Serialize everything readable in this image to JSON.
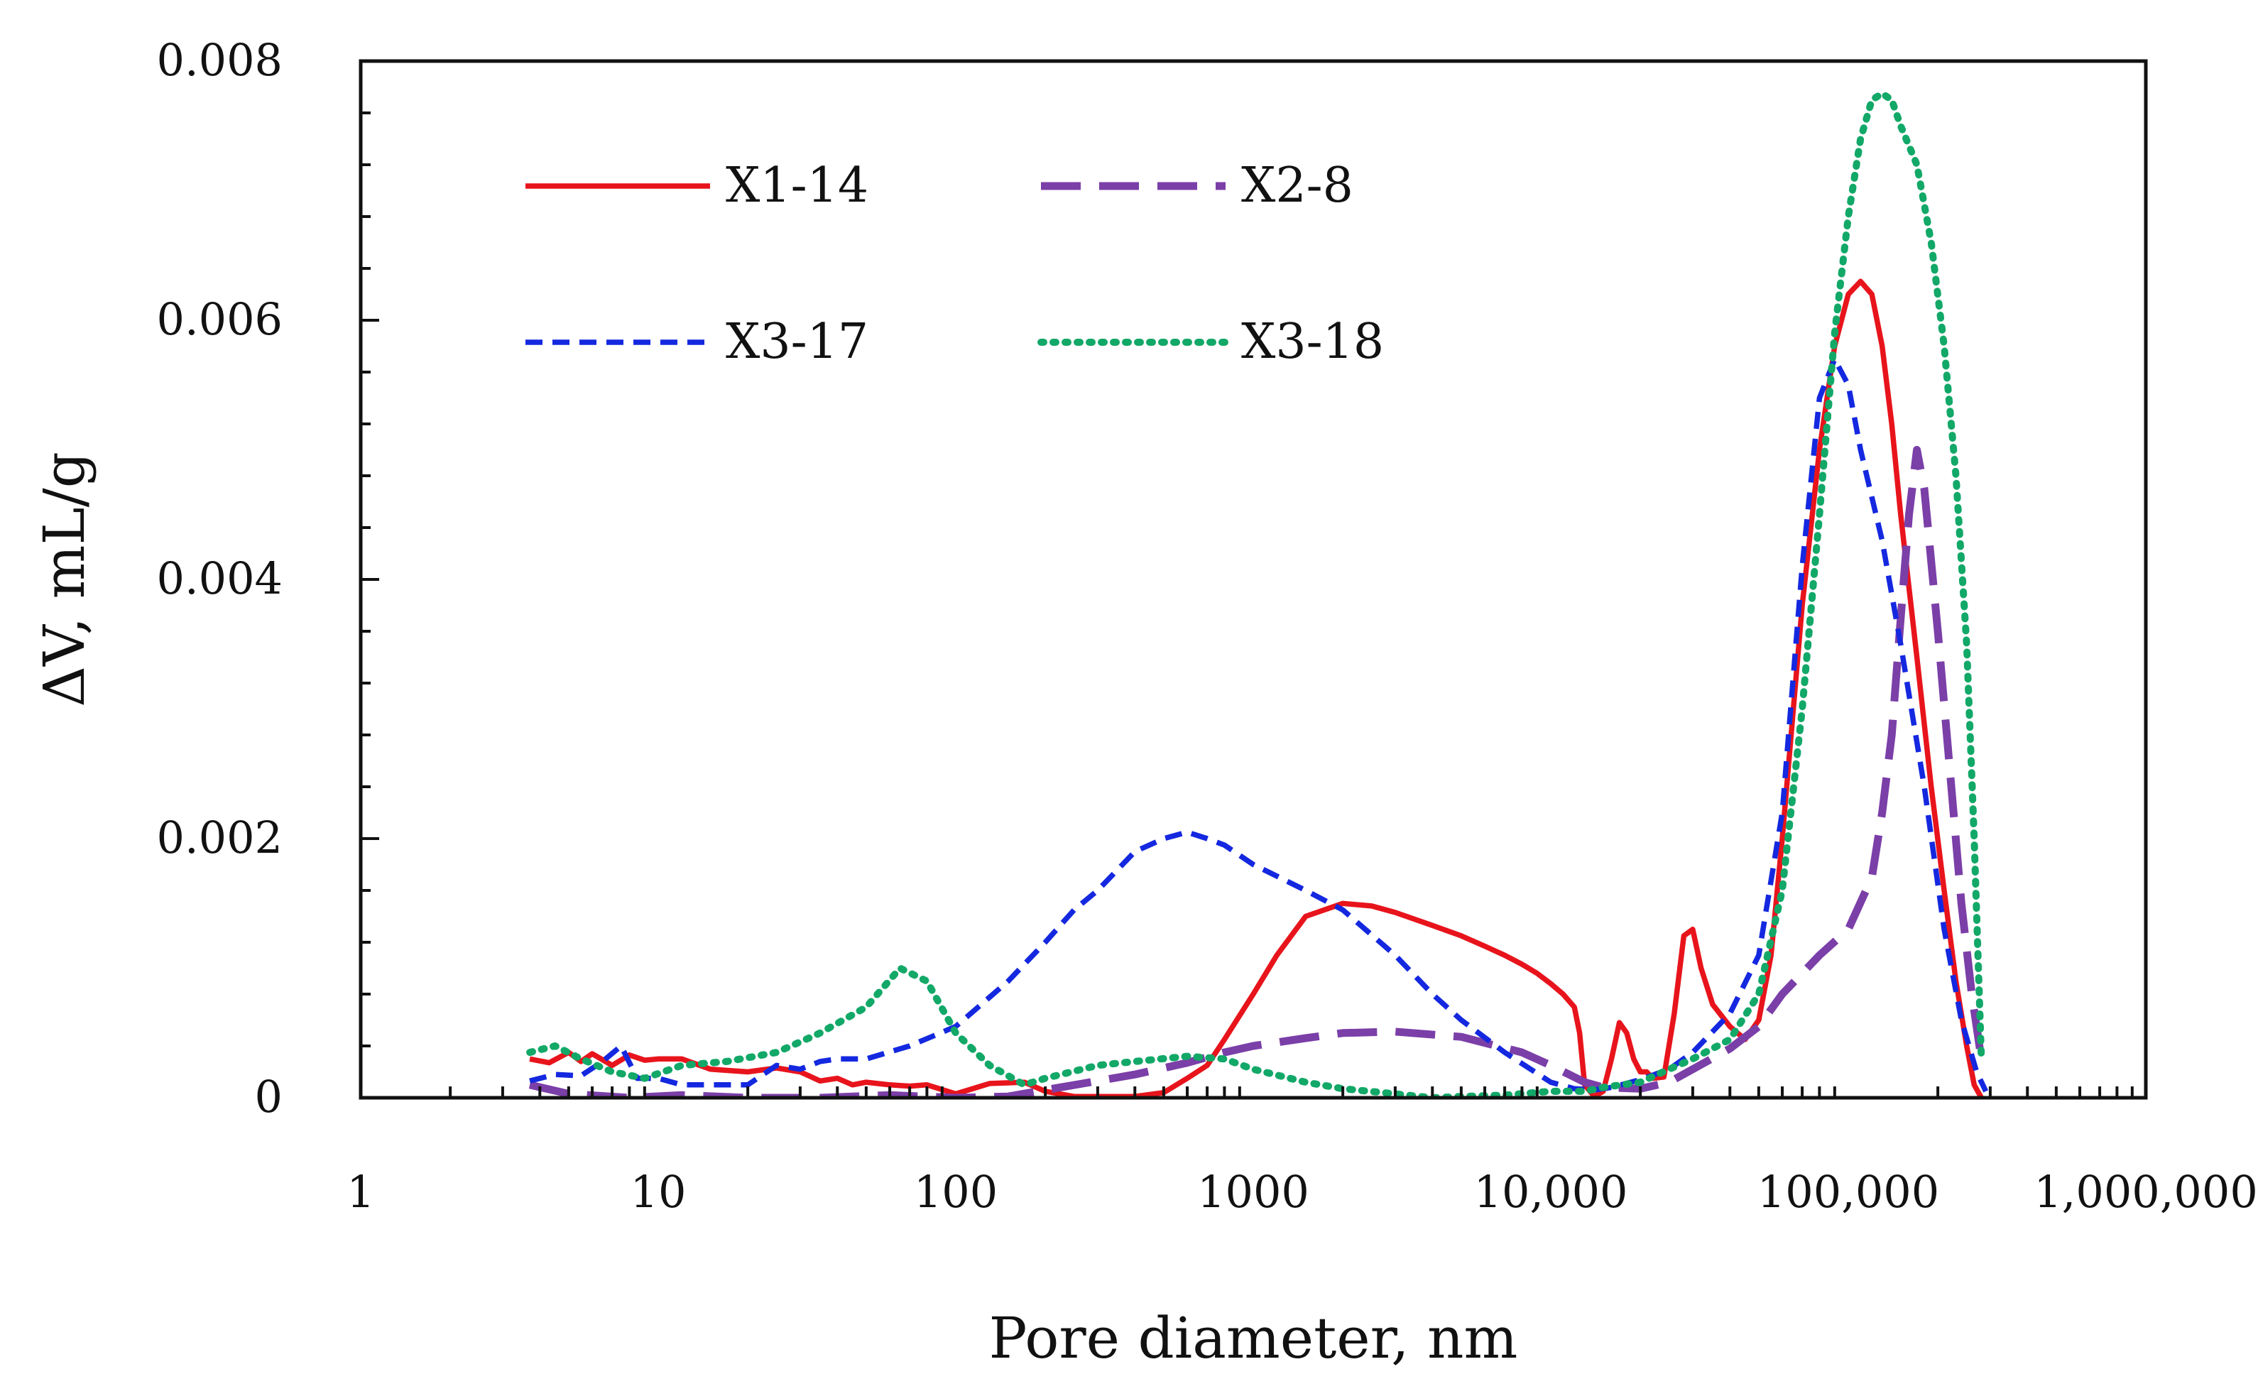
{
  "chart_data": {
    "type": "line",
    "title": "",
    "xlabel": "Pore diameter, nm",
    "ylabel": "ΔV, mL/g",
    "xscale": "log",
    "xlim": [
      1,
      1000000
    ],
    "ylim": [
      0,
      0.008
    ],
    "x_ticks": [
      {
        "value": 1,
        "label": "1"
      },
      {
        "value": 10,
        "label": "10"
      },
      {
        "value": 100,
        "label": "100"
      },
      {
        "value": 1000,
        "label": "1000"
      },
      {
        "value": 10000,
        "label": "10,000"
      },
      {
        "value": 100000,
        "label": "100,000"
      },
      {
        "value": 1000000,
        "label": "1,000,000"
      }
    ],
    "y_ticks": [
      {
        "value": 0,
        "label": "0"
      },
      {
        "value": 0.002,
        "label": "0.002"
      },
      {
        "value": 0.004,
        "label": "0.004"
      },
      {
        "value": 0.006,
        "label": "0.006"
      },
      {
        "value": 0.008,
        "label": "0.008"
      }
    ],
    "legend_position": "top-left",
    "series": [
      {
        "name": "X1-14",
        "color": "#e8141c",
        "style": "solid",
        "x": [
          3.7,
          4.3,
          5,
          5.5,
          6,
          7,
          8,
          9,
          10,
          12,
          15,
          20,
          25,
          30,
          35,
          40,
          45,
          50,
          60,
          70,
          80,
          100,
          130,
          170,
          200,
          250,
          300,
          400,
          500,
          600,
          700,
          800,
          1000,
          1200,
          1500,
          2000,
          2500,
          3000,
          4000,
          5000,
          6000,
          7000,
          8000,
          9000,
          10000,
          11000,
          12000,
          12500,
          13000,
          14000,
          15000,
          16000,
          17000,
          18000,
          19000,
          20000,
          21000,
          22000,
          24000,
          26000,
          28000,
          30000,
          32000,
          35000,
          40000,
          45000,
          50000,
          55000,
          60000,
          70000,
          80000,
          90000,
          100000,
          110000,
          120000,
          130000,
          140000,
          150000,
          170000,
          190000,
          210000,
          230000,
          250000,
          265000,
          280000
        ],
        "values": [
          0.0003,
          0.00027,
          0.00035,
          0.00028,
          0.00034,
          0.00025,
          0.00033,
          0.00029,
          0.0003,
          0.0003,
          0.00022,
          0.0002,
          0.00023,
          0.0002,
          0.00013,
          0.00015,
          0.0001,
          0.00012,
          0.0001,
          9e-05,
          0.0001,
          3e-05,
          0.00011,
          0.00012,
          5e-05,
          1e-05,
          1e-05,
          1e-05,
          4e-05,
          0.00015,
          0.00025,
          0.00045,
          0.0008,
          0.0011,
          0.0014,
          0.0015,
          0.00148,
          0.00143,
          0.00133,
          0.00125,
          0.00117,
          0.0011,
          0.00103,
          0.00096,
          0.00088,
          0.0008,
          0.0007,
          0.0005,
          0.0001,
          1e-05,
          5e-05,
          0.0003,
          0.00058,
          0.0005,
          0.0003,
          0.0002,
          0.0002,
          0.00015,
          0.00016,
          0.00065,
          0.00125,
          0.0013,
          0.001,
          0.00072,
          0.00055,
          0.00045,
          0.0006,
          0.0011,
          0.002,
          0.0038,
          0.005,
          0.0058,
          0.0062,
          0.0063,
          0.0062,
          0.0058,
          0.0052,
          0.0045,
          0.0034,
          0.0024,
          0.0016,
          0.0009,
          0.0004,
          0.0001,
          0.0
        ]
      },
      {
        "name": "X2-8",
        "color": "#7b3fa8",
        "style": "long-dash",
        "x": [
          3.7,
          5,
          8,
          12,
          20,
          35,
          60,
          100,
          150,
          200,
          300,
          400,
          600,
          800,
          1000,
          1500,
          2000,
          3000,
          5000,
          8000,
          10000,
          13000,
          15000,
          20000,
          25000,
          30000,
          40000,
          50000,
          60000,
          80000,
          100000,
          120000,
          130000,
          140000,
          150000,
          160000,
          170000,
          180000,
          200000,
          220000,
          240000,
          260000,
          280000
        ],
        "values": [
          0.0001,
          3e-05,
          0.0,
          2e-05,
          0.0,
          0.0,
          2e-05,
          0.0,
          1e-05,
          6e-05,
          0.00013,
          0.00018,
          0.00027,
          0.00035,
          0.0004,
          0.00046,
          0.0005,
          0.00051,
          0.00047,
          0.00035,
          0.00025,
          0.00012,
          8e-05,
          7e-05,
          0.00012,
          0.00022,
          0.00038,
          0.00055,
          0.0008,
          0.0011,
          0.0013,
          0.0017,
          0.0022,
          0.0028,
          0.0037,
          0.0045,
          0.005,
          0.0047,
          0.0036,
          0.0025,
          0.0015,
          0.0008,
          0.0003
        ]
      },
      {
        "name": "X3-17",
        "color": "#1428e0",
        "style": "short-dash",
        "x": [
          3.7,
          4.5,
          5.5,
          6.5,
          7.5,
          8.5,
          10,
          12,
          15,
          20,
          25,
          30,
          35,
          40,
          50,
          70,
          100,
          150,
          200,
          250,
          300,
          400,
          500,
          600,
          700,
          800,
          1000,
          1500,
          2000,
          3000,
          4000,
          5000,
          7000,
          10000,
          12000,
          14000,
          16000,
          20000,
          25000,
          30000,
          40000,
          50000,
          60000,
          70000,
          80000,
          90000,
          100000,
          110000,
          130000,
          150000,
          180000,
          210000,
          240000,
          270000,
          290000
        ],
        "values": [
          0.00013,
          0.00018,
          0.00017,
          0.00028,
          0.0004,
          0.00015,
          0.00015,
          0.0001,
          0.0001,
          0.0001,
          0.00025,
          0.00022,
          0.00028,
          0.0003,
          0.0003,
          0.0004,
          0.00055,
          0.0009,
          0.0012,
          0.00145,
          0.0016,
          0.0019,
          0.002,
          0.00205,
          0.002,
          0.00195,
          0.0018,
          0.0016,
          0.00145,
          0.0011,
          0.0008,
          0.0006,
          0.00035,
          0.00012,
          7e-05,
          6e-05,
          8e-05,
          0.00014,
          0.00022,
          0.00035,
          0.00065,
          0.0011,
          0.0022,
          0.0041,
          0.0054,
          0.0057,
          0.0055,
          0.005,
          0.0043,
          0.0035,
          0.0024,
          0.0013,
          0.0006,
          0.0002,
          5e-05
        ]
      },
      {
        "name": "X3-18",
        "color": "#12a868",
        "style": "dotted",
        "x": [
          3.7,
          4.5,
          5.5,
          7,
          9,
          12,
          17,
          25,
          35,
          50,
          65,
          80,
          100,
          130,
          170,
          200,
          300,
          400,
          600,
          800,
          1000,
          1500,
          2000,
          3000,
          4000,
          5000,
          7000,
          10000,
          13000,
          15000,
          20000,
          25000,
          30000,
          40000,
          50000,
          60000,
          70000,
          80000,
          90000,
          100000,
          110000,
          120000,
          130000,
          140000,
          150000,
          170000,
          190000,
          210000,
          230000,
          250000,
          265000,
          280000
        ],
        "values": [
          0.00035,
          0.0004,
          0.0003,
          0.0002,
          0.00015,
          0.00025,
          0.00028,
          0.00035,
          0.0005,
          0.0007,
          0.001,
          0.0009,
          0.0005,
          0.00025,
          0.0001,
          0.00015,
          0.00025,
          0.00028,
          0.00032,
          0.0003,
          0.00022,
          0.00012,
          7e-05,
          3e-05,
          0.0,
          1e-05,
          2e-05,
          5e-05,
          5e-05,
          8e-05,
          0.00012,
          0.00022,
          0.0003,
          0.00045,
          0.0008,
          0.0016,
          0.003,
          0.0045,
          0.0059,
          0.0068,
          0.0074,
          0.0077,
          0.00775,
          0.0077,
          0.0075,
          0.0072,
          0.0066,
          0.0058,
          0.0048,
          0.0035,
          0.002,
          0.0003
        ]
      }
    ]
  }
}
